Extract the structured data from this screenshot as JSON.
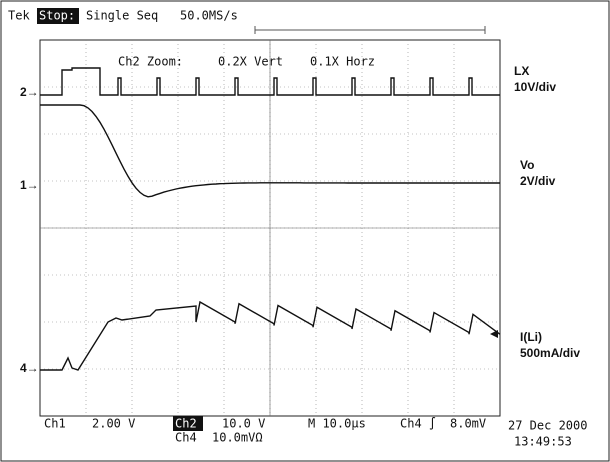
{
  "header": {
    "brand": "Tek",
    "state": "Stop:",
    "mode": "Single Seq",
    "rate": "50.0MS/s"
  },
  "zoom": {
    "channel": "Ch2 Zoom:",
    "vert": "0.2X Vert",
    "horz": "0.1X Horz"
  },
  "channels": [
    {
      "name": "LX",
      "scale": "10V/div"
    },
    {
      "name": "Vo",
      "scale": "2V/div"
    },
    {
      "name": "I(Li)",
      "scale": "500mA/div"
    }
  ],
  "markers": [
    "2→",
    "1→",
    "4→"
  ],
  "footer": {
    "ch1": "Ch1",
    "ch1_scale": "2.00 V",
    "ch2": "Ch2",
    "ch2_scale": "10.0 V",
    "time": "M 10.0µs",
    "trig": "Ch4 ∫",
    "trig_level": "8.0mV",
    "ch4": "Ch4",
    "ch4_scale": "10.0mVΩ",
    "date": "27 Dec 2000",
    "clock": "13:49:53"
  }
}
